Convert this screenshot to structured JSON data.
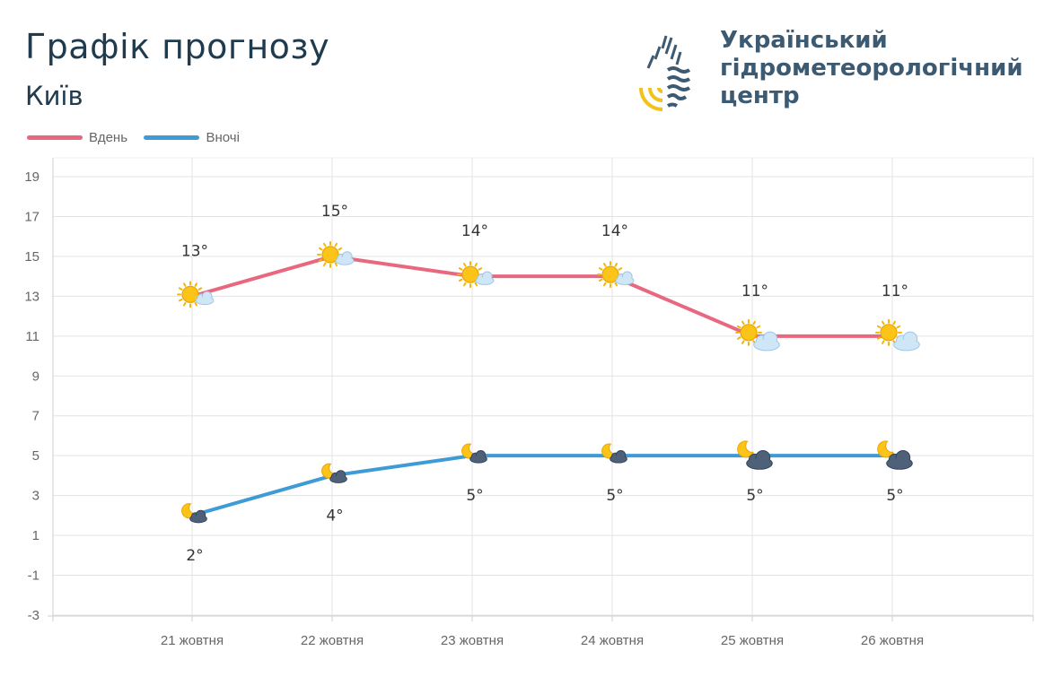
{
  "title": "Графік прогнозу",
  "subtitle": "Київ",
  "logo": {
    "lines": [
      "Український",
      "гідрометеорологічний",
      "центр"
    ]
  },
  "legend": [
    {
      "label": "Вдень",
      "color": "#e8687f"
    },
    {
      "label": "Вночі",
      "color": "#3e9bd6"
    }
  ],
  "chart_data": {
    "type": "line",
    "categories": [
      "21 жовтня",
      "22 жовтня",
      "23 жовтня",
      "24 жовтня",
      "25 жовтня",
      "26 жовтня"
    ],
    "series": [
      {
        "name": "Вдень",
        "color": "#e8687f",
        "values": [
          13,
          15,
          14,
          14,
          11,
          11
        ],
        "labels": [
          "13°",
          "15°",
          "14°",
          "14°",
          "11°",
          "11°"
        ],
        "icons": [
          "sun-with-small-cloud",
          "sun-with-small-cloud",
          "sun-with-small-cloud",
          "sun-with-small-cloud",
          "sun-with-cloud",
          "sun-with-cloud"
        ]
      },
      {
        "name": "Вночі",
        "color": "#3e9bd6",
        "values": [
          2,
          4,
          5,
          5,
          5,
          5
        ],
        "labels": [
          "2°",
          "4°",
          "5°",
          "5°",
          "5°",
          "5°"
        ],
        "icons": [
          "moon-with-small-cloud",
          "moon-with-small-cloud",
          "moon-with-small-cloud",
          "moon-with-small-cloud",
          "moon-with-dark-cloud",
          "moon-with-dark-cloud"
        ]
      }
    ],
    "y_ticks": [
      "19",
      "17",
      "15",
      "13",
      "11",
      "9",
      "7",
      "5",
      "3",
      "1",
      "-1",
      "-3"
    ],
    "ylim": [
      -3,
      19
    ],
    "grid": true,
    "legend_position": "top-left"
  }
}
